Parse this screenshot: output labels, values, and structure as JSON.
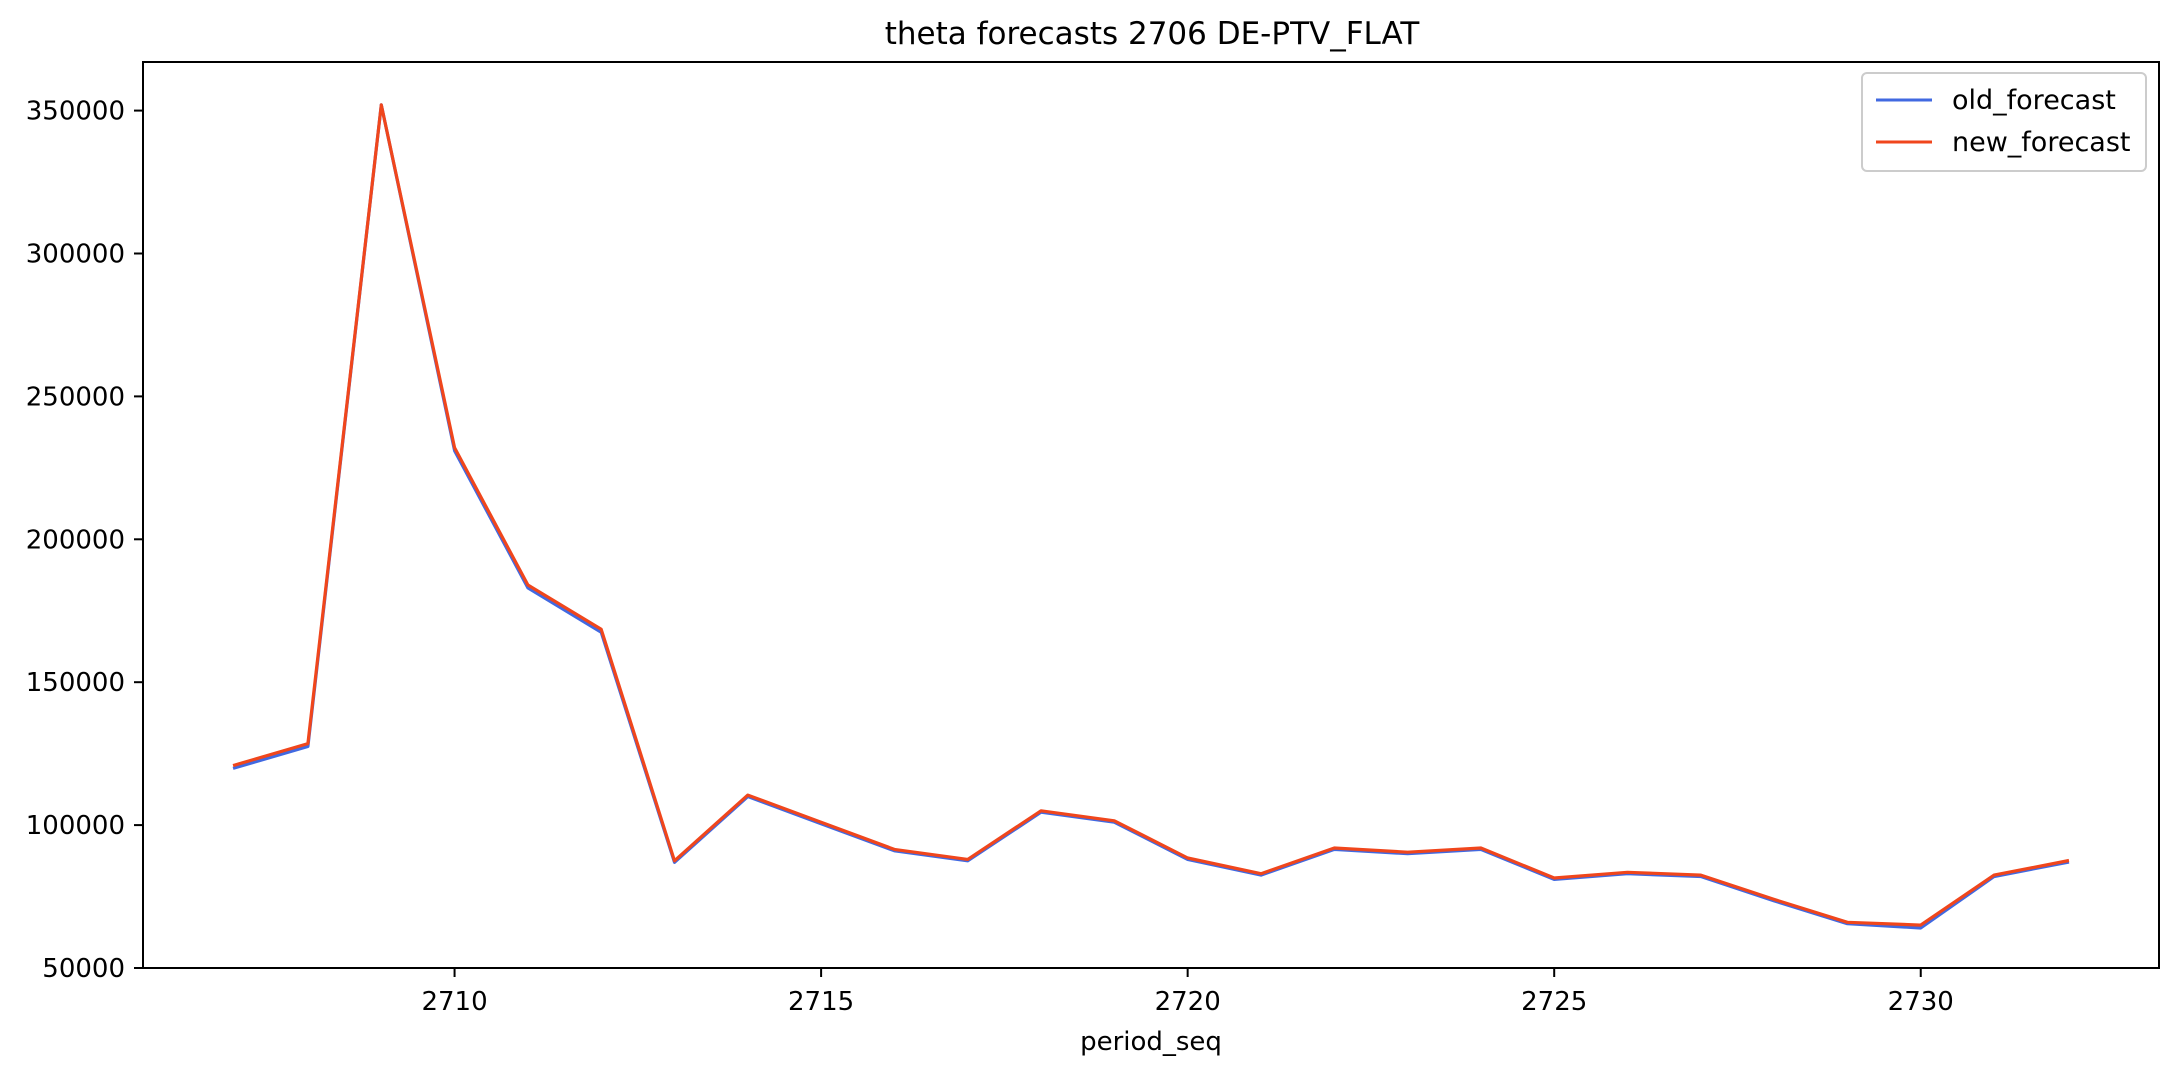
{
  "chart_data": {
    "type": "line",
    "title": "theta forecasts 2706 DE-PTV_FLAT",
    "xlabel": "period_seq",
    "ylabel": "",
    "x": [
      2707,
      2708,
      2709,
      2710,
      2711,
      2712,
      2713,
      2714,
      2715,
      2716,
      2717,
      2718,
      2719,
      2720,
      2721,
      2722,
      2723,
      2724,
      2725,
      2726,
      2727,
      2728,
      2729,
      2730,
      2731,
      2732
    ],
    "xlim": [
      2705.75,
      2733.25
    ],
    "ylim": [
      50000,
      367000
    ],
    "xticks": [
      2710,
      2715,
      2720,
      2725,
      2730
    ],
    "yticks": [
      50000,
      100000,
      150000,
      200000,
      250000,
      300000,
      350000
    ],
    "xtick_labels": [
      "2710",
      "2715",
      "2720",
      "2725",
      "2730"
    ],
    "ytick_labels": [
      "50000",
      "100000",
      "150000",
      "200000",
      "250000",
      "300000",
      "350000"
    ],
    "grid": false,
    "legend_position": "top-right",
    "series": [
      {
        "name": "old_forecast",
        "color": "#4169e1",
        "values": [
          120000,
          127500,
          352000,
          231000,
          183000,
          167500,
          87000,
          110000,
          100500,
          91000,
          87500,
          104500,
          101000,
          88000,
          82500,
          91500,
          90000,
          91500,
          81000,
          83000,
          82000,
          73500,
          65500,
          64000,
          82000,
          87000
        ]
      },
      {
        "name": "new_forecast",
        "color": "#f0461c",
        "values": [
          121000,
          128500,
          352000,
          232000,
          184000,
          168500,
          87500,
          110500,
          101000,
          91500,
          88000,
          105000,
          101500,
          88500,
          83000,
          92000,
          90500,
          92000,
          81500,
          83500,
          82500,
          74000,
          66000,
          65000,
          82500,
          87500
        ]
      }
    ]
  }
}
